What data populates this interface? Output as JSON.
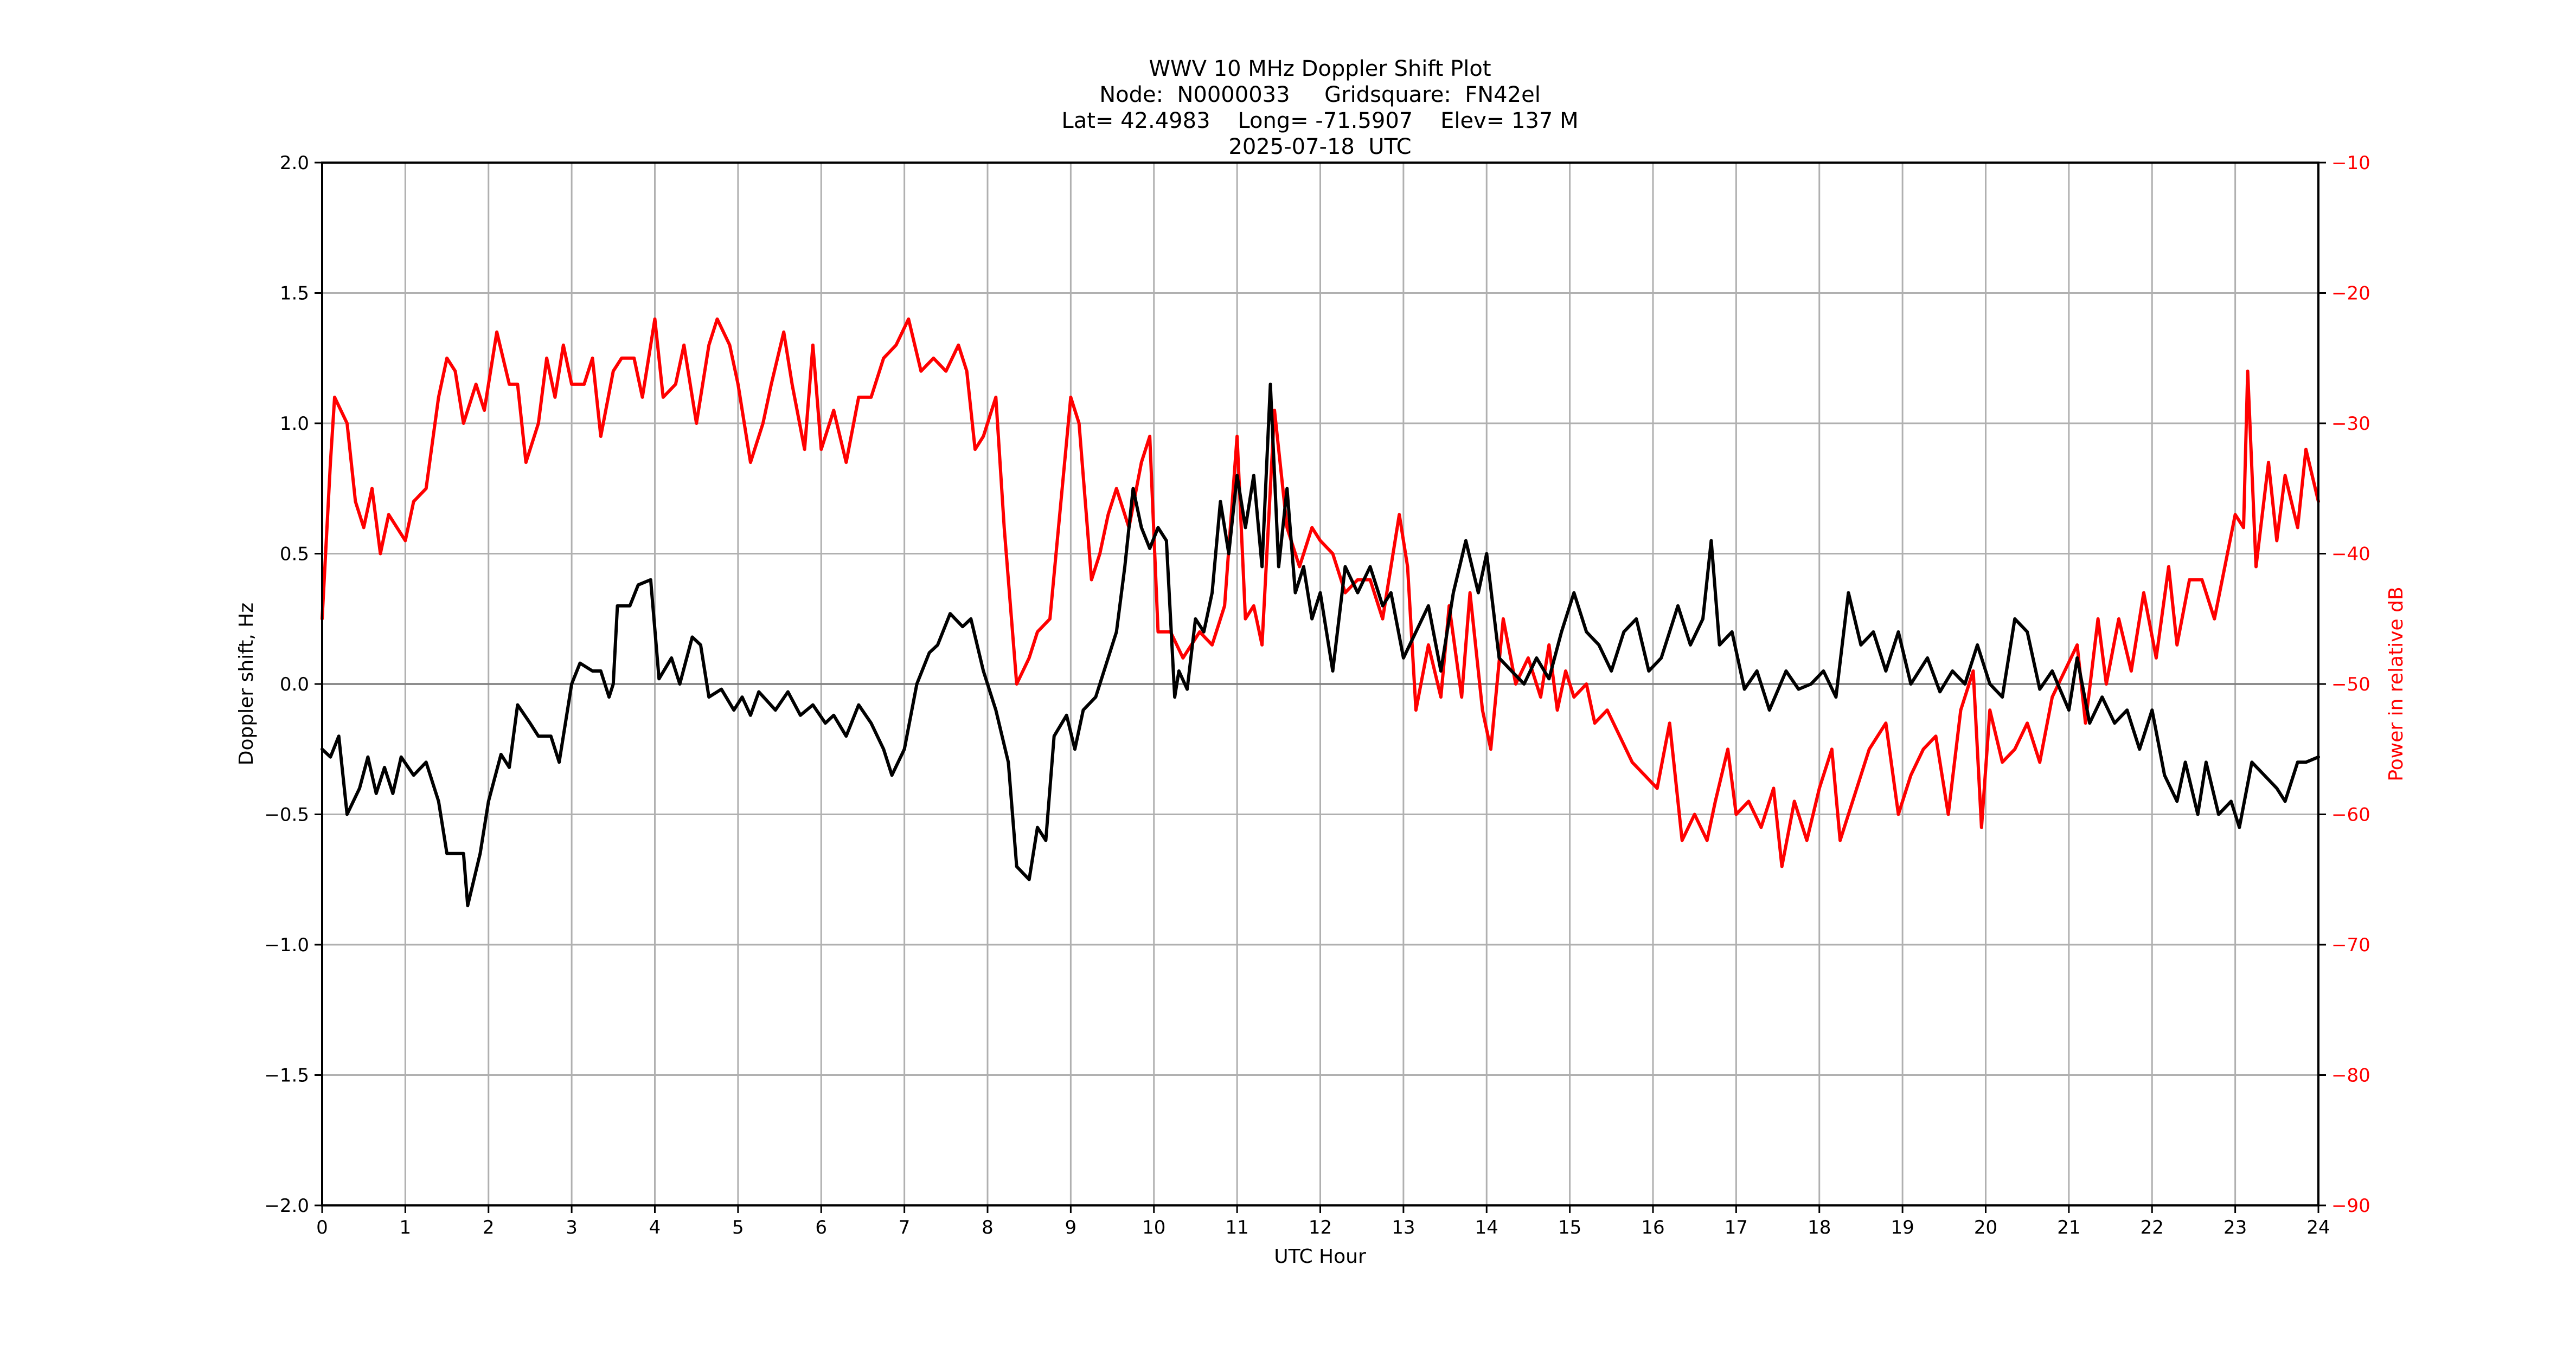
{
  "title": {
    "line1": "WWV 10 MHz Doppler Shift Plot",
    "line2": "Node:  N0000033     Gridsquare:  FN42el",
    "line3": "Lat= 42.4983    Long= -71.5907    Elev= 137 M",
    "line4": "2025-07-18  UTC"
  },
  "axes": {
    "xlabel": "UTC Hour",
    "ylabel_left": "Doppler shift, Hz",
    "ylabel_right": "Power in relative dB",
    "x_ticks": [
      "0",
      "1",
      "2",
      "3",
      "4",
      "5",
      "6",
      "7",
      "8",
      "9",
      "10",
      "11",
      "12",
      "13",
      "14",
      "15",
      "16",
      "17",
      "18",
      "19",
      "20",
      "21",
      "22",
      "23",
      "24"
    ],
    "y_left_ticks": [
      "2.0",
      "1.5",
      "1.0",
      "0.5",
      "0.0",
      "−0.5",
      "−1.0",
      "−1.5",
      "−2.0"
    ],
    "y_right_ticks": [
      "−10",
      "−20",
      "−30",
      "−40",
      "−50",
      "−60",
      "−70",
      "−80",
      "−90"
    ]
  },
  "colors": {
    "doppler": "#000000",
    "power": "#ff0000",
    "grid": "#b0b0b0",
    "right_axis_text": "#ff0000"
  },
  "chart_data": {
    "type": "line",
    "title": "WWV 10 MHz Doppler Shift Plot — Node N0000033, Gridsquare FN42el, Lat 42.4983, Long -71.5907, Elev 137 M, 2025-07-18 UTC",
    "xlabel": "UTC Hour",
    "ylabel": "Doppler shift, Hz",
    "ylabel_right": "Power in relative dB",
    "xlim": [
      0,
      24
    ],
    "ylim": [
      -2.0,
      2.0
    ],
    "ylim_right": [
      -90,
      -10
    ],
    "grid": true,
    "legend": null,
    "series": [
      {
        "name": "Doppler shift (Hz)",
        "axis": "left",
        "color": "#000000",
        "x": [
          0,
          0.1,
          0.2,
          0.3,
          0.45,
          0.55,
          0.65,
          0.75,
          0.85,
          0.95,
          1.1,
          1.25,
          1.4,
          1.5,
          1.7,
          1.75,
          1.9,
          2.0,
          2.15,
          2.25,
          2.35,
          2.5,
          2.6,
          2.75,
          2.85,
          3.0,
          3.1,
          3.25,
          3.35,
          3.45,
          3.5,
          3.55,
          3.7,
          3.8,
          3.95,
          4.05,
          4.2,
          4.3,
          4.45,
          4.55,
          4.65,
          4.8,
          4.95,
          5.05,
          5.15,
          5.25,
          5.45,
          5.6,
          5.75,
          5.9,
          6.05,
          6.15,
          6.3,
          6.45,
          6.6,
          6.75,
          6.85,
          7.0,
          7.15,
          7.3,
          7.4,
          7.55,
          7.7,
          7.8,
          7.95,
          8.1,
          8.25,
          8.35,
          8.5,
          8.6,
          8.7,
          8.8,
          8.95,
          9.05,
          9.15,
          9.3,
          9.45,
          9.55,
          9.65,
          9.75,
          9.85,
          9.95,
          10.05,
          10.15,
          10.25,
          10.3,
          10.4,
          10.5,
          10.6,
          10.7,
          10.8,
          10.9,
          11.0,
          11.1,
          11.2,
          11.3,
          11.4,
          11.5,
          11.6,
          11.7,
          11.8,
          11.9,
          12.0,
          12.15,
          12.3,
          12.45,
          12.6,
          12.75,
          12.85,
          13.0,
          13.15,
          13.3,
          13.45,
          13.6,
          13.75,
          13.9,
          14.0,
          14.15,
          14.3,
          14.45,
          14.6,
          14.75,
          14.9,
          15.05,
          15.2,
          15.35,
          15.5,
          15.65,
          15.8,
          15.95,
          16.1,
          16.3,
          16.45,
          16.6,
          16.7,
          16.8,
          16.95,
          17.1,
          17.25,
          17.4,
          17.6,
          17.75,
          17.9,
          18.05,
          18.2,
          18.35,
          18.5,
          18.65,
          18.8,
          18.95,
          19.1,
          19.3,
          19.45,
          19.6,
          19.75,
          19.9,
          20.05,
          20.2,
          20.35,
          20.5,
          20.65,
          20.8,
          21.0,
          21.1,
          21.25,
          21.4,
          21.55,
          21.7,
          21.85,
          22.0,
          22.15,
          22.3,
          22.4,
          22.55,
          22.65,
          22.8,
          22.95,
          23.05,
          23.2,
          23.35,
          23.5,
          23.6,
          23.75,
          23.85,
          24.0
        ],
        "values": [
          -0.25,
          -0.28,
          -0.2,
          -0.5,
          -0.4,
          -0.28,
          -0.42,
          -0.32,
          -0.42,
          -0.28,
          -0.35,
          -0.3,
          -0.45,
          -0.65,
          -0.65,
          -0.85,
          -0.65,
          -0.45,
          -0.27,
          -0.32,
          -0.08,
          -0.15,
          -0.2,
          -0.2,
          -0.3,
          0.0,
          0.08,
          0.05,
          0.05,
          -0.05,
          0.0,
          0.3,
          0.3,
          0.38,
          0.4,
          0.02,
          0.1,
          0.0,
          0.18,
          0.15,
          -0.05,
          -0.02,
          -0.1,
          -0.05,
          -0.12,
          -0.03,
          -0.1,
          -0.03,
          -0.12,
          -0.08,
          -0.15,
          -0.12,
          -0.2,
          -0.08,
          -0.15,
          -0.25,
          -0.35,
          -0.25,
          0.0,
          0.12,
          0.15,
          0.27,
          0.22,
          0.25,
          0.05,
          -0.1,
          -0.3,
          -0.7,
          -0.75,
          -0.55,
          -0.6,
          -0.2,
          -0.12,
          -0.25,
          -0.1,
          -0.05,
          0.1,
          0.2,
          0.45,
          0.75,
          0.6,
          0.52,
          0.6,
          0.55,
          -0.05,
          0.05,
          -0.02,
          0.25,
          0.2,
          0.35,
          0.7,
          0.5,
          0.8,
          0.6,
          0.8,
          0.45,
          1.15,
          0.45,
          0.75,
          0.35,
          0.45,
          0.25,
          0.35,
          0.05,
          0.45,
          0.35,
          0.45,
          0.3,
          0.35,
          0.1,
          0.2,
          0.3,
          0.05,
          0.35,
          0.55,
          0.35,
          0.5,
          0.1,
          0.05,
          0.0,
          0.1,
          0.02,
          0.2,
          0.35,
          0.2,
          0.15,
          0.05,
          0.2,
          0.25,
          0.05,
          0.1,
          0.3,
          0.15,
          0.25,
          0.55,
          0.15,
          0.2,
          -0.02,
          0.05,
          -0.1,
          0.05,
          -0.02,
          0.0,
          0.05,
          -0.05,
          0.35,
          0.15,
          0.2,
          0.05,
          0.2,
          0.0,
          0.1,
          -0.03,
          0.05,
          0.0,
          0.15,
          0.0,
          -0.05,
          0.25,
          0.2,
          -0.02,
          0.05,
          -0.1,
          0.1,
          -0.15,
          -0.05,
          -0.15,
          -0.1,
          -0.25,
          -0.1,
          -0.35,
          -0.45,
          -0.3,
          -0.5,
          -0.3,
          -0.5,
          -0.45,
          -0.55,
          -0.3,
          -0.35,
          -0.4,
          -0.45,
          -0.3,
          -0.3,
          -0.28
        ]
      },
      {
        "name": "Power (relative dB)",
        "axis": "right",
        "color": "#ff0000",
        "x": [
          0,
          0.1,
          0.15,
          0.3,
          0.4,
          0.5,
          0.6,
          0.7,
          0.8,
          0.9,
          1.0,
          1.1,
          1.25,
          1.4,
          1.5,
          1.6,
          1.7,
          1.85,
          1.95,
          2.1,
          2.25,
          2.35,
          2.45,
          2.6,
          2.7,
          2.8,
          2.9,
          3.0,
          3.15,
          3.25,
          3.35,
          3.5,
          3.6,
          3.75,
          3.85,
          4.0,
          4.1,
          4.25,
          4.35,
          4.5,
          4.65,
          4.75,
          4.9,
          5.0,
          5.15,
          5.3,
          5.4,
          5.55,
          5.65,
          5.8,
          5.9,
          6.0,
          6.15,
          6.3,
          6.45,
          6.6,
          6.75,
          6.9,
          7.05,
          7.2,
          7.35,
          7.5,
          7.65,
          7.75,
          7.85,
          7.95,
          8.1,
          8.2,
          8.35,
          8.5,
          8.6,
          8.75,
          9.0,
          9.1,
          9.25,
          9.35,
          9.45,
          9.55,
          9.7,
          9.85,
          9.95,
          10.05,
          10.2,
          10.35,
          10.45,
          10.55,
          10.7,
          10.85,
          11.0,
          11.1,
          11.2,
          11.3,
          11.45,
          11.6,
          11.75,
          11.9,
          12.0,
          12.15,
          12.3,
          12.45,
          12.6,
          12.75,
          12.95,
          13.05,
          13.15,
          13.3,
          13.45,
          13.55,
          13.7,
          13.8,
          13.95,
          14.05,
          14.2,
          14.35,
          14.5,
          14.65,
          14.75,
          14.85,
          14.95,
          15.05,
          15.2,
          15.3,
          15.45,
          15.6,
          15.75,
          15.9,
          16.05,
          16.2,
          16.35,
          16.5,
          16.65,
          16.75,
          16.9,
          17.0,
          17.15,
          17.3,
          17.45,
          17.55,
          17.7,
          17.85,
          18.0,
          18.15,
          18.25,
          18.45,
          18.6,
          18.8,
          18.95,
          19.1,
          19.25,
          19.4,
          19.55,
          19.7,
          19.85,
          19.95,
          20.05,
          20.2,
          20.35,
          20.5,
          20.65,
          20.8,
          20.95,
          21.1,
          21.2,
          21.35,
          21.45,
          21.6,
          21.75,
          21.9,
          22.05,
          22.2,
          22.3,
          22.45,
          22.6,
          22.75,
          23.0,
          23.1,
          23.15,
          23.25,
          23.4,
          23.5,
          23.6,
          23.75,
          23.85,
          24.0
        ],
        "values": [
          -45,
          -33,
          -28,
          -30,
          -36,
          -38,
          -35,
          -40,
          -37,
          -38,
          -39,
          -36,
          -35,
          -28,
          -25,
          -26,
          -30,
          -27,
          -29,
          -23,
          -27,
          -27,
          -33,
          -30,
          -25,
          -28,
          -24,
          -27,
          -27,
          -25,
          -31,
          -26,
          -25,
          -25,
          -28,
          -22,
          -28,
          -27,
          -24,
          -30,
          -24,
          -22,
          -24,
          -27,
          -33,
          -30,
          -27,
          -23,
          -27,
          -32,
          -24,
          -32,
          -29,
          -33,
          -28,
          -28,
          -25,
          -24,
          -22,
          -26,
          -25,
          -26,
          -24,
          -26,
          -32,
          -31,
          -28,
          -38,
          -50,
          -48,
          -46,
          -45,
          -28,
          -30,
          -42,
          -40,
          -37,
          -35,
          -38,
          -33,
          -31,
          -46,
          -46,
          -48,
          -47,
          -46,
          -47,
          -44,
          -31,
          -45,
          -44,
          -47,
          -29,
          -38,
          -41,
          -38,
          -39,
          -40,
          -43,
          -42,
          -42,
          -45,
          -37,
          -41,
          -52,
          -47,
          -51,
          -44,
          -51,
          -43,
          -52,
          -55,
          -45,
          -50,
          -48,
          -51,
          -47,
          -52,
          -49,
          -51,
          -50,
          -53,
          -52,
          -54,
          -56,
          -57,
          -58,
          -53,
          -62,
          -60,
          -62,
          -59,
          -55,
          -60,
          -59,
          -61,
          -58,
          -64,
          -59,
          -62,
          -58,
          -55,
          -62,
          -58,
          -55,
          -53,
          -60,
          -57,
          -55,
          -54,
          -60,
          -52,
          -49,
          -61,
          -52,
          -56,
          -55,
          -53,
          -56,
          -51,
          -49,
          -47,
          -53,
          -45,
          -50,
          -45,
          -49,
          -43,
          -48,
          -41,
          -47,
          -42,
          -42,
          -45,
          -37,
          -38,
          -26,
          -41,
          -33,
          -39,
          -34,
          -38,
          -32,
          -36
        ]
      }
    ]
  }
}
